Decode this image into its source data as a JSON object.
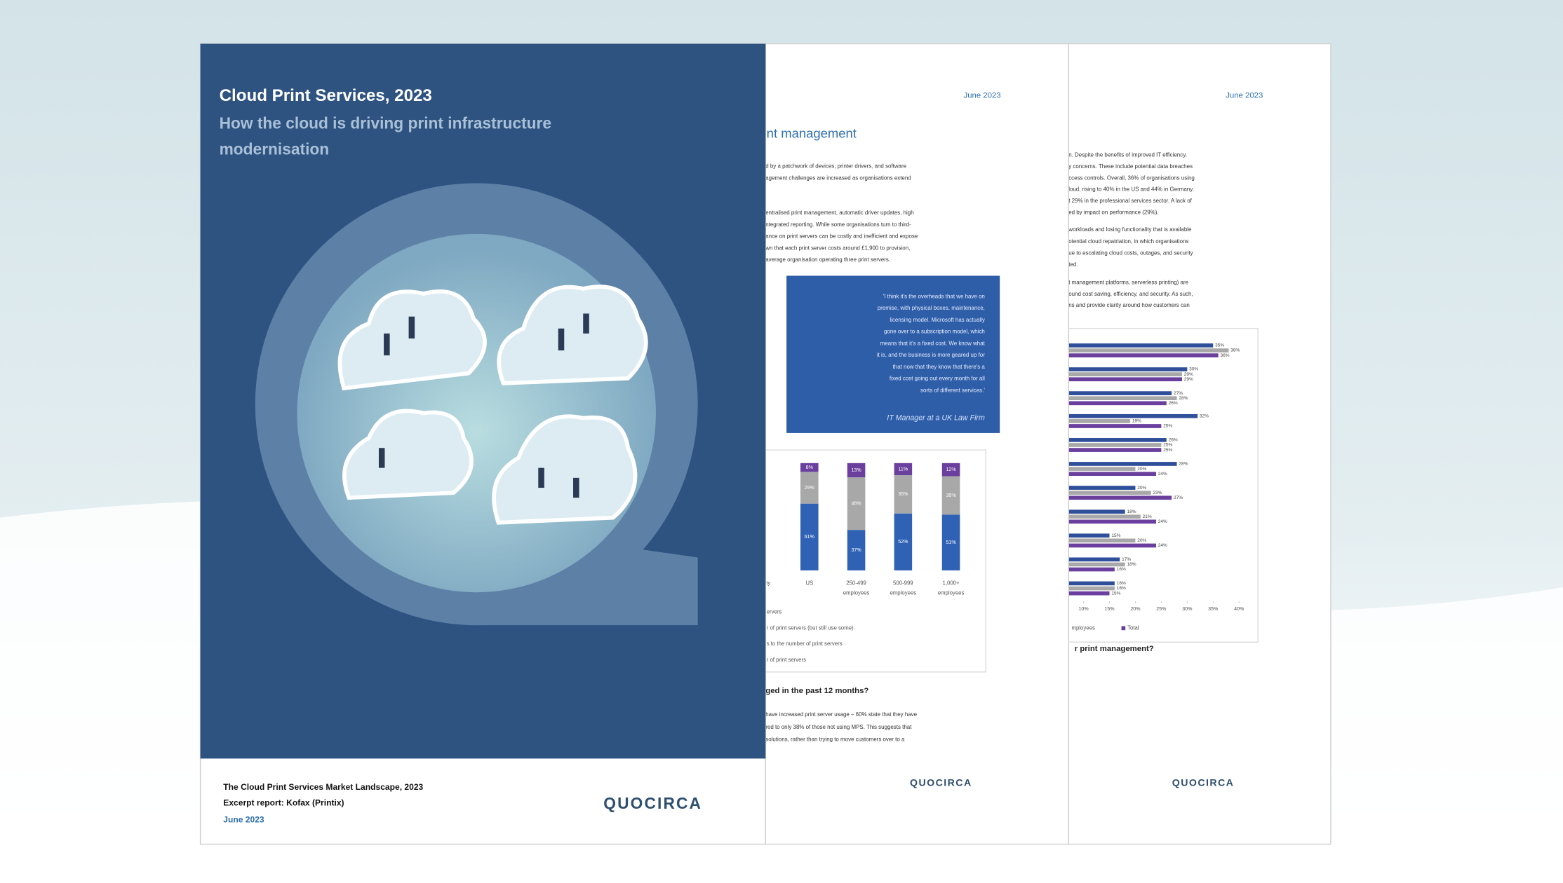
{
  "cover": {
    "title": "Cloud Print Services, 2023",
    "subtitle": [
      "How the cloud is driving print infrastructure",
      "modernisation"
    ],
    "footer": [
      "The Cloud Print Services Market Landscape, 2023",
      "Excerpt report: Kofax (Printix)",
      "June 2023"
    ],
    "logo": "QUOCIRCA"
  },
  "page2": {
    "date": "June 2023",
    "heading": "nt management",
    "body1": [
      "d by a patchwork of devices, printer drivers, and software",
      "agement challenges are increased as organisations extend"
    ],
    "body2": [
      "entralised print management, automatic driver updates, high",
      "ntegrated reporting. While some organisations turn to third-",
      "ance on print servers can be costly and inefficient and expose",
      "wn that each print server costs around £1,900 to provision,",
      "average organisation operating three print servers."
    ],
    "quote": [
      "'I think it's the overheads that we have on",
      "premise, with physical boxes, maintenance,",
      "licensing model. Microsoft has actually",
      "gone over to a subscription model, which",
      "means that it's a fixed cost. We know what",
      "it is, and the business is more geared up for",
      "that now that they know that there's a",
      "fixed cost going out every month for all",
      "sorts of different services.'"
    ],
    "quote_source": "IT Manager at a UK Law Firm",
    "chart": {
      "categories": [
        "ny",
        "US",
        "250-499 employees",
        "500-999 employees",
        "1,000+ employees"
      ],
      "series": [
        {
          "color": "#2f62b5",
          "values": [
            null,
            61,
            37,
            52,
            51
          ],
          "value_labels": [
            null,
            "61%",
            "37%",
            "52%",
            "51%"
          ]
        },
        {
          "color": "#a8a8a8",
          "values": [
            null,
            29,
            48,
            35,
            35
          ],
          "value_labels": [
            null,
            "29%",
            "48%",
            "35%",
            "35%"
          ]
        },
        {
          "color": "#6a3f9e",
          "values": [
            null,
            8,
            13,
            11,
            12
          ],
          "value_labels": [
            null,
            "8%",
            "13%",
            "11%",
            "12%"
          ]
        }
      ],
      "legend": [
        "ervers",
        "r of print servers (but still use some)",
        "s to the number of print servers",
        "r of print servers"
      ]
    },
    "question": "ged in the past 12 months?",
    "body3": [
      "have increased print server usage – 60% state that they have",
      "red to only 38% of those not using MPS. This suggests that",
      "solutions, rather than trying to move customers over to a"
    ],
    "logo": "QUOCIRCA"
  },
  "page3": {
    "date": "June 2023",
    "body1": [
      "n. Despite the benefits of improved IT efficiency,",
      "y concerns. These include potential data breaches",
      "ccess controls. Overall, 36% of organisations using",
      "loud, rising to 40% in the US and 44% in Germany.",
      "t 29% in the professional services sector. A lack of",
      "ed by impact on performance (29%)."
    ],
    "body2": [
      "workloads and losing functionality that is available",
      "otential cloud repatriation, in which organisations",
      "ue to escalating cloud costs, outages, and security",
      "ted."
    ],
    "body3": [
      "t management platforms, serverless printing) are",
      "ound cost saving, efficiency, and security. As such,",
      "ns and provide clarity around how customers can"
    ],
    "chart": {
      "xlim": [
        0,
        40
      ],
      "xticks": [
        {
          "value": 10,
          "label": "10%"
        },
        {
          "value": 15,
          "label": "15%"
        },
        {
          "value": 20,
          "label": "20%"
        },
        {
          "value": 25,
          "label": "25%"
        },
        {
          "value": 30,
          "label": "30%"
        },
        {
          "value": 35,
          "label": "35%"
        },
        {
          "value": 40,
          "label": "40%"
        }
      ],
      "series": [
        {
          "name": "mployees",
          "color": "#2f4f9a",
          "values": [
            35,
            30,
            27,
            32,
            26,
            28,
            20,
            18,
            15,
            17,
            16
          ],
          "value_labels": [
            "35%",
            "30%",
            "27%",
            "32%",
            "26%",
            "28%",
            "20%",
            "18%",
            "15%",
            "17%",
            "16%"
          ]
        },
        {
          "color": "#a8a8a8",
          "values": [
            38,
            29,
            28,
            19,
            25,
            20,
            23,
            21,
            20,
            18,
            16
          ],
          "value_labels": [
            "38%",
            "29%",
            "28%",
            "19%",
            "25%",
            "20%",
            "23%",
            "21%",
            "20%",
            "18%",
            "16%"
          ]
        },
        {
          "name": "Total",
          "color": "#6a3f9e",
          "values": [
            36,
            29,
            26,
            25,
            25,
            24,
            27,
            24,
            24,
            16,
            15
          ],
          "value_labels": [
            "36%",
            "29%",
            "26%",
            "25%",
            "25%",
            "24%",
            "27%",
            "24%",
            "24%",
            "16%",
            "15%"
          ]
        }
      ]
    },
    "question": "r print management?",
    "logo": "QUOCIRCA"
  }
}
